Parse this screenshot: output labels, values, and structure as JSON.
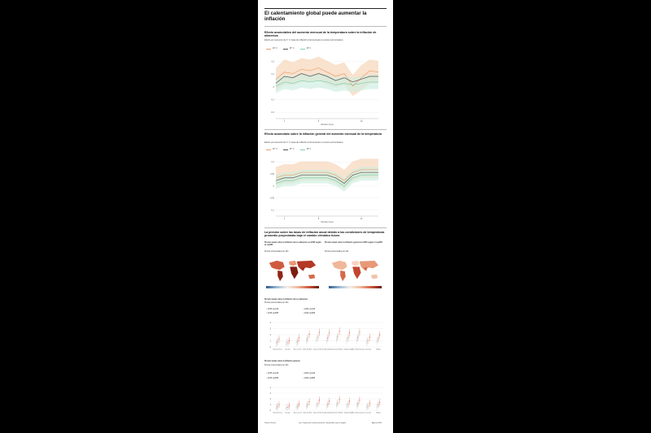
{
  "title": "El calentamiento global puede aumentar la inflación",
  "chart1": {
    "heading": "Efecto acumulativo del aumento mensual de la temperatura sobre la inflación de alimentos",
    "subheading": "Efecto por aumento de 1° C (tasa de inflación intermensual en puntos porcentuales)",
    "xlabel": "Retraso (mes)",
    "legend": [
      "20° C",
      "25° C",
      "30° C"
    ]
  },
  "chart2": {
    "heading": "Efecto acumulado sobre la inflación general del aumento mensual de la temperatura",
    "subheading": "Efecto por aumento de 1° C (tasa de inflación intermensual en puntos porcentuales)",
    "xlabel": "Retraso (mes)",
    "legend": [
      "20° C",
      "25° C",
      "30° C"
    ]
  },
  "maps": {
    "heading": "La presión sobre las tasas de inflación anual debido a las condiciones de temperatura promedio proyectadas bajo el cambio climático futuro",
    "left": {
      "title": "Presión anual sobre la inflación de los alimentos en 2035 según el ssp585",
      "unit": "Puntos porcentuales por año"
    },
    "right": {
      "title": "Presión anual sobre la inflación general en 2035 según el ssp585",
      "unit": "Puntos porcentuales por año"
    }
  },
  "chart3": {
    "heading": "Presión anual sobre la inflación de los alimentos",
    "unit": "Puntos porcentuales por año",
    "legend": [
      "2035 ssp126",
      "2060 ssp126",
      "2035 ssp585",
      "2060 ssp585"
    ]
  },
  "chart4": {
    "heading": "Presión anual sobre la inflación general",
    "unit": "Puntos porcentuales por año",
    "legend": [
      "2035 ssp126",
      "2060 ssp126",
      "2035 ssp585",
      "2060 ssp585"
    ]
  },
  "footer": {
    "source": "Fuente: Nature",
    "note": "ssp: Trayectorias socioeconómicas compartidas (ssp en inglés)",
    "credit": "Agencia EFE"
  },
  "colors": {
    "t20": "#e8a06a",
    "t25": "#555555",
    "t30": "#7fcfb0",
    "band20": "#f6d3b3",
    "band30": "#cdeee0",
    "map_high": "#a0261c",
    "map_low": "#2f5d8a"
  },
  "chart_data": [
    {
      "type": "line",
      "xlabel": "Retraso (mes)",
      "x": [
        0,
        1,
        2,
        3,
        4,
        5,
        6,
        7,
        8,
        9,
        10,
        11,
        12
      ],
      "xticks": [
        1,
        5,
        10
      ],
      "yticks": [
        "0,2",
        "0,1",
        "0",
        "-0,1",
        "-0,2"
      ],
      "ylim": [
        -0.2,
        0.25
      ],
      "series": [
        {
          "name": "20° C",
          "values": [
            0.08,
            0.13,
            0.12,
            0.15,
            0.14,
            0.16,
            0.13,
            0.1,
            0.12,
            0.03,
            0.09,
            0.14,
            0.13
          ],
          "lower": [
            0.0,
            0.04,
            0.04,
            0.06,
            0.06,
            0.07,
            0.04,
            0.02,
            0.04,
            -0.04,
            0.0,
            0.05,
            0.05
          ],
          "upper": [
            0.16,
            0.22,
            0.2,
            0.23,
            0.22,
            0.24,
            0.21,
            0.18,
            0.2,
            0.11,
            0.18,
            0.22,
            0.21
          ]
        },
        {
          "name": "25° C",
          "values": [
            0.05,
            0.1,
            0.09,
            0.12,
            0.1,
            0.12,
            0.1,
            0.07,
            0.09,
            0.06,
            0.08,
            0.1,
            0.1
          ]
        },
        {
          "name": "30° C",
          "values": [
            0.03,
            0.06,
            0.05,
            0.07,
            0.06,
            0.07,
            0.06,
            0.04,
            0.05,
            0.04,
            0.05,
            0.06,
            0.06
          ],
          "lower": [
            -0.02,
            0.01,
            0.0,
            0.02,
            0.01,
            0.02,
            0.01,
            -0.01,
            0.0,
            -0.01,
            0.0,
            0.01,
            0.01
          ],
          "upper": [
            0.08,
            0.11,
            0.1,
            0.12,
            0.11,
            0.12,
            0.11,
            0.09,
            0.1,
            0.09,
            0.1,
            0.11,
            0.11
          ]
        }
      ]
    },
    {
      "type": "line",
      "xlabel": "Retraso (mes)",
      "x": [
        0,
        1,
        2,
        3,
        4,
        5,
        6,
        7,
        8,
        9,
        10,
        11,
        12
      ],
      "xticks": [
        1,
        5,
        10
      ],
      "yticks": [
        "0,1",
        "0,05",
        "0",
        "-0,05",
        "-0,1"
      ],
      "ylim": [
        -0.1,
        0.12
      ],
      "series": [
        {
          "name": "20° C",
          "values": [
            0.04,
            0.05,
            0.05,
            0.06,
            0.06,
            0.06,
            0.06,
            0.05,
            0.03,
            0.06,
            0.07,
            0.07,
            0.07
          ],
          "lower": [
            0.01,
            0.02,
            0.02,
            0.03,
            0.03,
            0.03,
            0.03,
            0.02,
            0.0,
            0.03,
            0.04,
            0.04,
            0.04
          ],
          "upper": [
            0.08,
            0.09,
            0.09,
            0.1,
            0.1,
            0.1,
            0.1,
            0.09,
            0.07,
            0.1,
            0.11,
            0.11,
            0.11
          ]
        },
        {
          "name": "25° C",
          "values": [
            0.03,
            0.04,
            0.04,
            0.05,
            0.05,
            0.05,
            0.05,
            0.04,
            0.02,
            0.05,
            0.06,
            0.06,
            0.06
          ]
        },
        {
          "name": "30° C",
          "values": [
            0.02,
            0.03,
            0.03,
            0.04,
            0.04,
            0.04,
            0.04,
            0.03,
            0.01,
            0.04,
            0.05,
            0.05,
            0.05
          ],
          "lower": [
            0.0,
            0.01,
            0.01,
            0.02,
            0.02,
            0.02,
            0.02,
            0.01,
            -0.01,
            0.02,
            0.03,
            0.03,
            0.03
          ],
          "upper": [
            0.05,
            0.06,
            0.06,
            0.07,
            0.07,
            0.07,
            0.07,
            0.06,
            0.04,
            0.07,
            0.08,
            0.08,
            0.08
          ]
        }
      ]
    },
    {
      "type": "scatter",
      "categories": [
        "Norteamérica",
        "Europa",
        "Asia central",
        "Asia del Este",
        "Asia del Sur",
        "Sudeste Asiático",
        "Oriente Medio",
        "Sudamérica",
        "África Subsahariana",
        "Oceanía",
        "Global"
      ],
      "yticks": [
        "4",
        "3",
        "2",
        "1",
        "0"
      ],
      "ylim": [
        0,
        4
      ],
      "series": [
        {
          "name": "2035 ssp126",
          "values": [
            0.6,
            0.5,
            0.7,
            1.0,
            1.1,
            1.0,
            1.2,
            1.0,
            1.1,
            0.7,
            0.9
          ]
        },
        {
          "name": "2060 ssp126",
          "values": [
            0.8,
            0.7,
            0.9,
            1.3,
            1.5,
            1.4,
            1.6,
            1.4,
            1.5,
            1.0,
            1.2
          ]
        },
        {
          "name": "2035 ssp585",
          "values": [
            0.9,
            0.7,
            1.0,
            1.5,
            1.7,
            1.6,
            1.8,
            1.6,
            1.7,
            1.1,
            1.4
          ]
        },
        {
          "name": "2060 ssp585",
          "values": [
            1.3,
            1.0,
            1.5,
            2.1,
            2.4,
            2.3,
            2.6,
            2.3,
            2.4,
            1.6,
            2.0
          ]
        }
      ]
    },
    {
      "type": "scatter",
      "categories": [
        "Norteamérica",
        "Europa",
        "Asia central",
        "Asia del Este",
        "Asia del Sur",
        "Sudeste Asiático",
        "Oriente Medio",
        "Sudamérica",
        "África Subsahariana",
        "Oceanía",
        "Global"
      ],
      "yticks": [
        "4",
        "3",
        "2",
        "1",
        "0"
      ],
      "ylim": [
        0,
        4
      ],
      "series": [
        {
          "name": "2035 ssp126",
          "values": [
            0.4,
            0.3,
            0.5,
            0.7,
            0.8,
            0.7,
            0.9,
            0.7,
            0.8,
            0.5,
            0.6
          ]
        },
        {
          "name": "2060 ssp126",
          "values": [
            0.6,
            0.5,
            0.7,
            0.9,
            1.1,
            1.0,
            1.2,
            1.0,
            1.1,
            0.7,
            0.9
          ]
        },
        {
          "name": "2035 ssp585",
          "values": [
            0.7,
            0.5,
            0.8,
            1.1,
            1.2,
            1.1,
            1.3,
            1.1,
            1.2,
            0.8,
            1.0
          ]
        },
        {
          "name": "2060 ssp585",
          "values": [
            1.0,
            0.8,
            1.1,
            1.5,
            1.8,
            1.6,
            1.9,
            1.6,
            1.8,
            1.2,
            1.4
          ]
        }
      ]
    }
  ]
}
